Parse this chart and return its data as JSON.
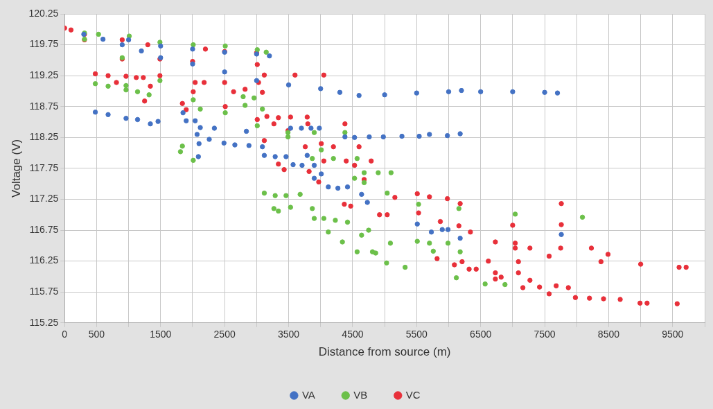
{
  "chart_data": {
    "type": "scatter",
    "xlabel": "Distance from source (m)",
    "ylabel": "Voltage (V)",
    "xlim": [
      0,
      10000
    ],
    "xticks": [
      0,
      500,
      {
        "value": 1000,
        "label": null
      },
      1500,
      {
        "value": 2000,
        "label": null
      },
      2500,
      {
        "value": 3000,
        "label": null
      },
      3500,
      {
        "value": 4000,
        "label": null
      },
      4500,
      {
        "value": 5000,
        "label": null
      },
      5500,
      {
        "value": 6000,
        "label": null
      },
      6500,
      {
        "value": 7000,
        "label": null
      },
      7500,
      {
        "value": 8000,
        "label": null
      },
      8500,
      {
        "value": 9000,
        "label": null
      },
      9500,
      {
        "value": 10000,
        "label": null
      }
    ],
    "ylim": [
      115.25,
      120.25
    ],
    "yticks": [
      115.25,
      115.75,
      116.25,
      116.75,
      117.25,
      117.75,
      118.25,
      118.75,
      119.25,
      119.75,
      120.25
    ],
    "grid": true,
    "legend": "bottom",
    "marker": "circle",
    "series": [
      {
        "name": "VA",
        "color": "#4472c4",
        "x": [
          300,
          600,
          900,
          1200,
          1500,
          2000,
          2500,
          3000,
          3500,
          4000,
          4300,
          4600,
          5000,
          5500,
          6000,
          6200,
          6500,
          7000,
          7500,
          7700,
          1000,
          1500,
          2000,
          2500,
          3000,
          3200,
          480,
          680,
          960,
          1140,
          1340,
          1460,
          1850,
          1900,
          2040,
          2120,
          2340,
          2070,
          2100,
          2090,
          2260,
          2490,
          2660,
          2880,
          2840,
          3090,
          3120,
          3290,
          3460,
          3570,
          3710,
          3790,
          3900,
          4010,
          3900,
          4120,
          4270,
          4420,
          4640,
          4730,
          3530,
          3700,
          3850,
          3980,
          4380,
          4530,
          4760,
          4980,
          5270,
          5540,
          5700,
          5980,
          6180,
          5510,
          5730,
          5900,
          5990,
          6180,
          7760
        ],
        "values": [
          119.92,
          119.84,
          119.75,
          119.65,
          119.54,
          119.44,
          119.31,
          119.17,
          119.1,
          119.04,
          118.98,
          118.93,
          118.94,
          118.97,
          118.99,
          119.01,
          118.99,
          118.99,
          118.98,
          118.97,
          119.83,
          119.73,
          119.68,
          119.63,
          119.6,
          119.57,
          118.66,
          118.62,
          118.56,
          118.54,
          118.47,
          118.51,
          118.65,
          118.52,
          118.52,
          118.41,
          118.4,
          118.3,
          118.15,
          117.94,
          118.22,
          118.16,
          118.13,
          118.12,
          118.35,
          118.1,
          117.96,
          117.94,
          117.94,
          117.81,
          117.8,
          117.96,
          117.8,
          117.66,
          117.59,
          117.45,
          117.43,
          117.45,
          117.33,
          117.2,
          118.4,
          118.4,
          118.4,
          118.4,
          118.26,
          118.25,
          118.26,
          118.26,
          118.27,
          118.27,
          118.3,
          118.28,
          118.31,
          116.85,
          116.72,
          116.76,
          116.76,
          116.62,
          116.68
        ]
      },
      {
        "name": "VB",
        "color": "#6cc04a",
        "x": [
          311,
          530,
          1010,
          1490,
          2010,
          2510,
          3010,
          3150,
          311,
          900,
          1490,
          2010,
          2510,
          3010,
          3490,
          4010,
          4530,
          4680,
          5040,
          5530,
          6160,
          7040,
          8090,
          3490,
          3900,
          4380,
          3870,
          4200,
          4570,
          4680,
          4900,
          5100,
          480,
          680,
          960,
          960,
          1140,
          1320,
          1840,
          1810,
          2010,
          2120,
          2790,
          2960,
          2820,
          3090,
          3120,
          3290,
          3460,
          3270,
          3340,
          3530,
          3680,
          3870,
          3900,
          4050,
          4120,
          4230,
          4420,
          4340,
          4570,
          4640,
          4810,
          4750,
          5090,
          5030,
          4860,
          5320,
          5510,
          5700,
          5760,
          5990,
          6120,
          6180,
          6570,
          6880
        ],
        "values": [
          119.94,
          119.92,
          119.89,
          119.79,
          119.75,
          119.73,
          119.67,
          119.63,
          119.84,
          119.54,
          119.17,
          118.86,
          118.65,
          118.44,
          118.26,
          118.05,
          117.59,
          117.52,
          117.35,
          117.17,
          117.1,
          117.01,
          116.96,
          118.33,
          118.33,
          118.33,
          117.91,
          117.91,
          117.91,
          117.68,
          117.68,
          117.68,
          119.12,
          119.08,
          119.09,
          119.02,
          118.99,
          118.94,
          118.11,
          118.02,
          117.88,
          118.71,
          118.91,
          118.89,
          118.77,
          118.71,
          117.35,
          117.31,
          117.31,
          117.1,
          117.06,
          117.12,
          117.33,
          117.1,
          116.94,
          116.94,
          116.72,
          116.91,
          116.88,
          116.56,
          116.4,
          116.67,
          116.4,
          116.75,
          116.54,
          116.22,
          116.38,
          116.15,
          116.57,
          116.54,
          116.41,
          116.54,
          115.98,
          116.4,
          115.88,
          115.87
        ]
      },
      {
        "name": "VC",
        "color": "#e8303a",
        "x": [
          0,
          100,
          311,
          900,
          1300,
          2200,
          2500,
          3000,
          1490,
          2000,
          3010,
          3120,
          3600,
          4050,
          311,
          900,
          1490,
          2010,
          2510,
          3010,
          3490,
          4010,
          4530,
          4680,
          5160,
          5530,
          5870,
          6160,
          7000,
          7760,
          6340,
          7040,
          8490,
          7570,
          8380,
          9000,
          9600,
          9710,
          7270,
          7750,
          8230,
          3270,
          3800,
          4380,
          3760,
          4200,
          4600,
          4050,
          4400,
          4790,
          2040,
          2500,
          3030,
          480,
          680,
          810,
          960,
          1120,
          1230,
          1250,
          1340,
          1840,
          1900,
          2180,
          2640,
          2820,
          3090,
          3160,
          3340,
          3530,
          3790,
          3120,
          3340,
          3430,
          3820,
          3970,
          4370,
          4470,
          4920,
          5040,
          5510,
          5700,
          5980,
          6180,
          5820,
          6090,
          6210,
          6320,
          6430,
          6620,
          6730,
          6730,
          6820,
          7090,
          7090,
          7270,
          7160,
          7420,
          7570,
          7680,
          7870,
          7980,
          8200,
          8420,
          8680,
          8990,
          9100,
          9570,
          7760,
          6730,
          7040
        ],
        "values": [
          120.02,
          119.99,
          119.92,
          119.83,
          119.75,
          119.68,
          119.64,
          119.62,
          119.52,
          119.48,
          119.43,
          119.26,
          119.26,
          119.26,
          119.83,
          119.52,
          119.25,
          118.99,
          118.75,
          118.54,
          118.36,
          118.15,
          117.8,
          117.57,
          117.28,
          117.03,
          116.89,
          116.82,
          116.83,
          116.84,
          116.72,
          116.46,
          116.36,
          116.33,
          116.24,
          116.2,
          116.15,
          116.15,
          116.46,
          116.46,
          116.46,
          118.47,
          118.47,
          118.47,
          118.1,
          118.1,
          118.1,
          117.87,
          117.87,
          117.87,
          119.14,
          119.14,
          119.14,
          119.28,
          119.25,
          119.14,
          119.24,
          119.22,
          119.22,
          118.84,
          119.08,
          118.8,
          118.7,
          119.14,
          118.99,
          119.03,
          118.98,
          118.59,
          118.57,
          118.58,
          118.58,
          118.2,
          117.82,
          117.73,
          117.7,
          117.53,
          117.17,
          117.14,
          117,
          117,
          117.34,
          117.29,
          117.26,
          117.18,
          116.29,
          116.19,
          116.24,
          116.12,
          116.12,
          116.25,
          116.06,
          115.96,
          115.99,
          116.06,
          116.24,
          115.94,
          115.82,
          115.83,
          115.72,
          115.85,
          115.82,
          115.66,
          115.65,
          115.64,
          115.63,
          115.57,
          115.57,
          115.56,
          117.18,
          116.56,
          116.54
        ]
      }
    ]
  }
}
